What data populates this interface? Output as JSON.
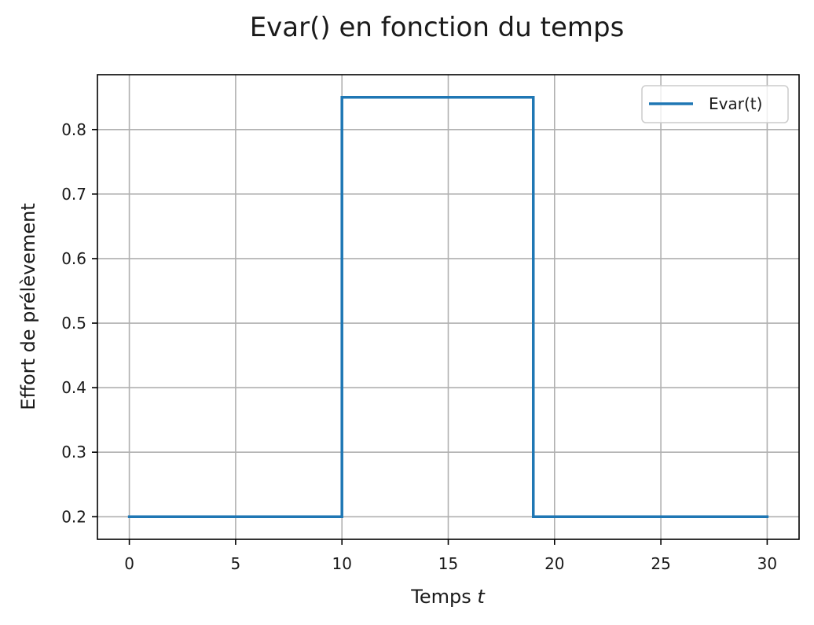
{
  "chart_data": {
    "type": "line",
    "title": "Evar() en fonction du temps",
    "xlabel_prefix": "Temps ",
    "xlabel_var": "t",
    "ylabel": "Effort de prélèvement",
    "xlim": [
      -1.5,
      31.5
    ],
    "ylim": [
      0.165,
      0.885
    ],
    "xticks": [
      0,
      5,
      10,
      15,
      20,
      25,
      30
    ],
    "xtick_labels": [
      "0",
      "5",
      "10",
      "15",
      "20",
      "25",
      "30"
    ],
    "yticks": [
      0.2,
      0.3,
      0.4,
      0.5,
      0.6,
      0.7,
      0.8
    ],
    "ytick_labels": [
      "0.2",
      "0.3",
      "0.4",
      "0.5",
      "0.6",
      "0.7",
      "0.8"
    ],
    "grid": true,
    "legend_position": "top-right",
    "series": [
      {
        "name": "Evar(t)",
        "color": "#1f77b4",
        "x": [
          0,
          10,
          10,
          19,
          19,
          30
        ],
        "y": [
          0.2,
          0.2,
          0.85,
          0.85,
          0.2,
          0.2
        ]
      }
    ]
  }
}
